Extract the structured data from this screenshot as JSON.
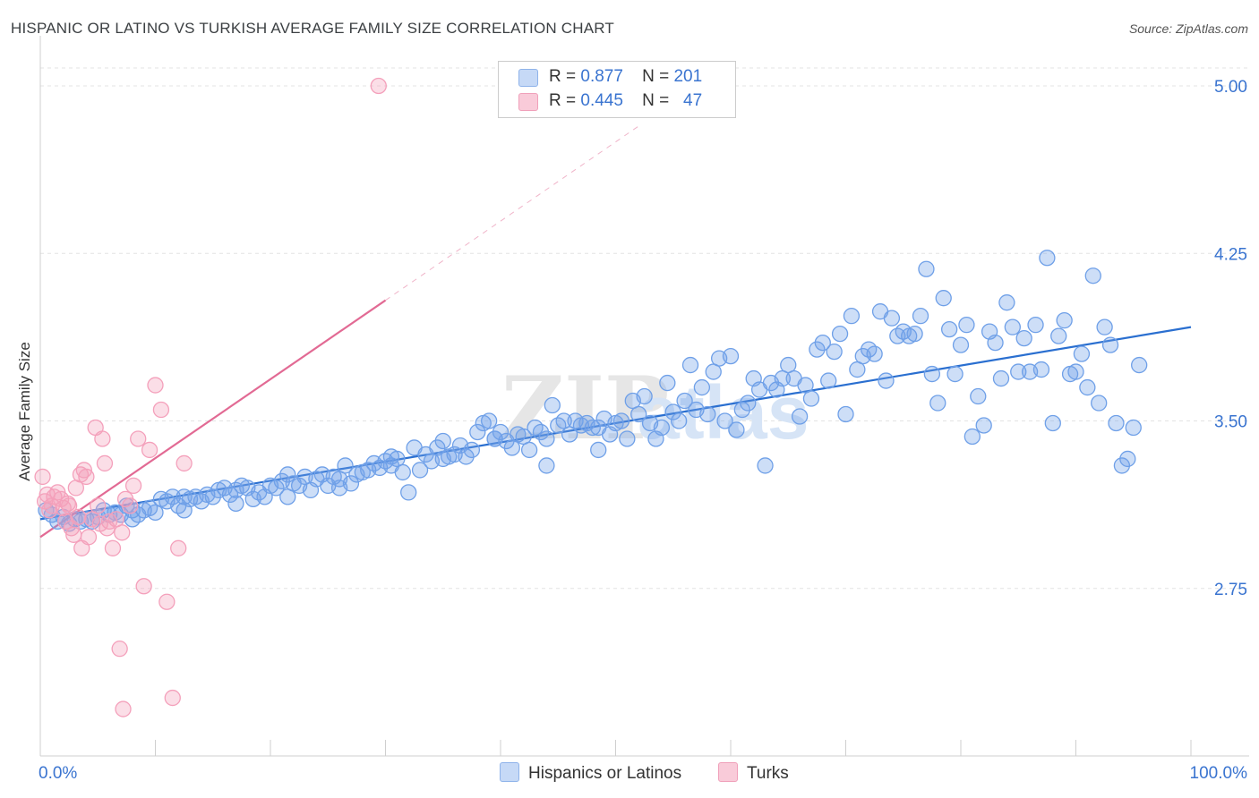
{
  "title": "HISPANIC OR LATINO VS TURKISH AVERAGE FAMILY SIZE CORRELATION CHART",
  "source": "Source: ZipAtlas.com",
  "watermark": "ZIPatlas",
  "legend_top": [
    {
      "r_label": "R =",
      "r_value": "0.877",
      "n_label": "N =",
      "n_value": "201",
      "color": "#a9c7f2"
    },
    {
      "r_label": "R =",
      "r_value": "0.445",
      "n_label": "N =",
      "n_value": "47",
      "color": "#f6b8cb"
    }
  ],
  "chart_data": {
    "type": "scatter",
    "title": "HISPANIC OR LATINO VS TURKISH AVERAGE FAMILY SIZE CORRELATION CHART",
    "xlabel": "",
    "ylabel": "Average Family Size",
    "x_tick_labels": [
      "0.0%",
      "100.0%"
    ],
    "y_ticks": [
      2.75,
      3.5,
      4.25,
      5.0
    ],
    "y_tick_labels": [
      "2.75",
      "3.50",
      "4.25",
      "5.00"
    ],
    "xlim": [
      0,
      100
    ],
    "ylim": [
      2.0,
      5.1
    ],
    "grid": true,
    "legend_position": "bottom",
    "series": [
      {
        "name": "Hispanics or Latinos",
        "color": "#6fa0e8",
        "line_color": "#2a6fd0",
        "trend": {
          "x": [
            0,
            100
          ],
          "y": [
            3.06,
            3.92
          ]
        },
        "points": [
          [
            0.5,
            3.1
          ],
          [
            1,
            3.08
          ],
          [
            1.5,
            3.05
          ],
          [
            2,
            3.07
          ],
          [
            2.5,
            3.04
          ],
          [
            3,
            3.06
          ],
          [
            3.5,
            3.05
          ],
          [
            4,
            3.06
          ],
          [
            4.5,
            3.05
          ],
          [
            5,
            3.07
          ],
          [
            5.5,
            3.1
          ],
          [
            6,
            3.08
          ],
          [
            6.5,
            3.09
          ],
          [
            7,
            3.08
          ],
          [
            7.5,
            3.12
          ],
          [
            8,
            3.1
          ],
          [
            8.5,
            3.08
          ],
          [
            9,
            3.1
          ],
          [
            9.5,
            3.11
          ],
          [
            10,
            3.09
          ],
          [
            10.5,
            3.15
          ],
          [
            11,
            3.14
          ],
          [
            11.5,
            3.16
          ],
          [
            12,
            3.12
          ],
          [
            12.5,
            3.16
          ],
          [
            13,
            3.15
          ],
          [
            13.5,
            3.16
          ],
          [
            14,
            3.14
          ],
          [
            14.5,
            3.17
          ],
          [
            15,
            3.16
          ],
          [
            15.5,
            3.19
          ],
          [
            16,
            3.2
          ],
          [
            16.5,
            3.17
          ],
          [
            17,
            3.19
          ],
          [
            17.5,
            3.21
          ],
          [
            18,
            3.2
          ],
          [
            18.5,
            3.15
          ],
          [
            19,
            3.18
          ],
          [
            19.5,
            3.16
          ],
          [
            20,
            3.21
          ],
          [
            20.5,
            3.2
          ],
          [
            21,
            3.23
          ],
          [
            21.5,
            3.26
          ],
          [
            22,
            3.22
          ],
          [
            22.5,
            3.21
          ],
          [
            23,
            3.25
          ],
          [
            23.5,
            3.19
          ],
          [
            24,
            3.24
          ],
          [
            24.5,
            3.26
          ],
          [
            25,
            3.21
          ],
          [
            25.5,
            3.25
          ],
          [
            26,
            3.24
          ],
          [
            26.5,
            3.3
          ],
          [
            27,
            3.22
          ],
          [
            27.5,
            3.26
          ],
          [
            28,
            3.27
          ],
          [
            28.5,
            3.28
          ],
          [
            29,
            3.31
          ],
          [
            29.5,
            3.29
          ],
          [
            30,
            3.32
          ],
          [
            30.5,
            3.34
          ],
          [
            31,
            3.33
          ],
          [
            31.5,
            3.27
          ],
          [
            32,
            3.18
          ],
          [
            32.5,
            3.38
          ],
          [
            33,
            3.28
          ],
          [
            33.5,
            3.35
          ],
          [
            34,
            3.32
          ],
          [
            34.5,
            3.38
          ],
          [
            35,
            3.41
          ],
          [
            35.5,
            3.34
          ],
          [
            36,
            3.35
          ],
          [
            36.5,
            3.39
          ],
          [
            37,
            3.34
          ],
          [
            37.5,
            3.37
          ],
          [
            38,
            3.45
          ],
          [
            38.5,
            3.49
          ],
          [
            39,
            3.5
          ],
          [
            39.5,
            3.42
          ],
          [
            40,
            3.45
          ],
          [
            40.5,
            3.41
          ],
          [
            41,
            3.38
          ],
          [
            41.5,
            3.44
          ],
          [
            42,
            3.43
          ],
          [
            42.5,
            3.37
          ],
          [
            43,
            3.47
          ],
          [
            43.5,
            3.45
          ],
          [
            44,
            3.3
          ],
          [
            44.5,
            3.57
          ],
          [
            45,
            3.48
          ],
          [
            45.5,
            3.5
          ],
          [
            46,
            3.44
          ],
          [
            46.5,
            3.5
          ],
          [
            47,
            3.48
          ],
          [
            47.5,
            3.49
          ],
          [
            48,
            3.47
          ],
          [
            48.5,
            3.37
          ],
          [
            49,
            3.51
          ],
          [
            49.5,
            3.44
          ],
          [
            50,
            3.49
          ],
          [
            50.5,
            3.5
          ],
          [
            51,
            3.42
          ],
          [
            51.5,
            3.59
          ],
          [
            52,
            3.53
          ],
          [
            52.5,
            3.61
          ],
          [
            53,
            3.49
          ],
          [
            53.5,
            3.42
          ],
          [
            54,
            3.47
          ],
          [
            54.5,
            3.67
          ],
          [
            55,
            3.54
          ],
          [
            55.5,
            3.5
          ],
          [
            56,
            3.59
          ],
          [
            56.5,
            3.75
          ],
          [
            57,
            3.55
          ],
          [
            57.5,
            3.65
          ],
          [
            58,
            3.53
          ],
          [
            58.5,
            3.72
          ],
          [
            59,
            3.78
          ],
          [
            59.5,
            3.5
          ],
          [
            60,
            3.79
          ],
          [
            60.5,
            3.46
          ],
          [
            61,
            3.55
          ],
          [
            61.5,
            3.58
          ],
          [
            62,
            3.69
          ],
          [
            62.5,
            3.64
          ],
          [
            63,
            3.3
          ],
          [
            63.5,
            3.67
          ],
          [
            64,
            3.64
          ],
          [
            64.5,
            3.69
          ],
          [
            65,
            3.75
          ],
          [
            65.5,
            3.69
          ],
          [
            66,
            3.52
          ],
          [
            66.5,
            3.66
          ],
          [
            67,
            3.6
          ],
          [
            67.5,
            3.82
          ],
          [
            68,
            3.85
          ],
          [
            68.5,
            3.68
          ],
          [
            69,
            3.81
          ],
          [
            69.5,
            3.89
          ],
          [
            70,
            3.53
          ],
          [
            70.5,
            3.97
          ],
          [
            71,
            3.73
          ],
          [
            71.5,
            3.79
          ],
          [
            72,
            3.82
          ],
          [
            72.5,
            3.8
          ],
          [
            73,
            3.99
          ],
          [
            73.5,
            3.68
          ],
          [
            74,
            3.96
          ],
          [
            74.5,
            3.88
          ],
          [
            75,
            3.9
          ],
          [
            75.5,
            3.88
          ],
          [
            76,
            3.89
          ],
          [
            76.5,
            3.97
          ],
          [
            77,
            4.18
          ],
          [
            77.5,
            3.71
          ],
          [
            78,
            3.58
          ],
          [
            78.5,
            4.05
          ],
          [
            79,
            3.91
          ],
          [
            79.5,
            3.71
          ],
          [
            80,
            3.84
          ],
          [
            80.5,
            3.93
          ],
          [
            81,
            3.43
          ],
          [
            81.5,
            3.61
          ],
          [
            82,
            3.48
          ],
          [
            82.5,
            3.9
          ],
          [
            83,
            3.85
          ],
          [
            83.5,
            3.69
          ],
          [
            84,
            4.03
          ],
          [
            84.5,
            3.92
          ],
          [
            85,
            3.72
          ],
          [
            85.5,
            3.87
          ],
          [
            86,
            3.72
          ],
          [
            86.5,
            3.93
          ],
          [
            87,
            3.73
          ],
          [
            87.5,
            4.23
          ],
          [
            88,
            3.49
          ],
          [
            88.5,
            3.88
          ],
          [
            89,
            3.95
          ],
          [
            89.5,
            3.71
          ],
          [
            90,
            3.72
          ],
          [
            90.5,
            3.8
          ],
          [
            91,
            3.65
          ],
          [
            91.5,
            4.15
          ],
          [
            92,
            3.58
          ],
          [
            92.5,
            3.92
          ],
          [
            93,
            3.84
          ],
          [
            93.5,
            3.49
          ],
          [
            94,
            3.3
          ],
          [
            94.5,
            3.33
          ],
          [
            95,
            3.47
          ],
          [
            95.5,
            3.75
          ],
          [
            8,
            3.06
          ],
          [
            12.5,
            3.1
          ],
          [
            17,
            3.13
          ],
          [
            21.5,
            3.16
          ],
          [
            26,
            3.2
          ],
          [
            30.5,
            3.3
          ],
          [
            35,
            3.33
          ],
          [
            39.5,
            3.42
          ],
          [
            44,
            3.42
          ],
          [
            48.5,
            3.47
          ]
        ]
      },
      {
        "name": "Turks",
        "color": "#f4a0bb",
        "line_color": "#e26a94",
        "trend": {
          "x": [
            0,
            30
          ],
          "y": [
            2.98,
            4.04
          ]
        },
        "trend_extended": {
          "x": [
            30,
            52
          ],
          "y": [
            4.04,
            4.82
          ]
        },
        "points": [
          [
            0.2,
            3.25
          ],
          [
            0.4,
            3.14
          ],
          [
            0.6,
            3.17
          ],
          [
            0.8,
            3.1
          ],
          [
            1,
            3.12
          ],
          [
            1.2,
            3.16
          ],
          [
            1.5,
            3.18
          ],
          [
            1.8,
            3.15
          ],
          [
            2,
            3.11
          ],
          [
            2.2,
            3.05
          ],
          [
            2.4,
            3.13
          ],
          [
            2.5,
            3.12
          ],
          [
            2.7,
            3.02
          ],
          [
            2.9,
            2.99
          ],
          [
            3.1,
            3.2
          ],
          [
            3.3,
            3.07
          ],
          [
            3.5,
            3.26
          ],
          [
            3.6,
            2.93
          ],
          [
            3.8,
            3.28
          ],
          [
            4,
            3.25
          ],
          [
            4.2,
            2.98
          ],
          [
            4.5,
            3.06
          ],
          [
            4.8,
            3.47
          ],
          [
            5,
            3.12
          ],
          [
            5.2,
            3.04
          ],
          [
            5.4,
            3.42
          ],
          [
            5.6,
            3.31
          ],
          [
            5.8,
            3.02
          ],
          [
            6,
            3.05
          ],
          [
            6.3,
            2.93
          ],
          [
            6.6,
            3.06
          ],
          [
            6.9,
            2.48
          ],
          [
            7.1,
            3.0
          ],
          [
            7.4,
            3.15
          ],
          [
            7.8,
            3.12
          ],
          [
            8.1,
            3.21
          ],
          [
            8.5,
            3.42
          ],
          [
            9,
            2.76
          ],
          [
            9.5,
            3.37
          ],
          [
            10,
            3.66
          ],
          [
            10.5,
            3.55
          ],
          [
            11,
            2.69
          ],
          [
            11.5,
            2.26
          ],
          [
            12,
            2.93
          ],
          [
            12.5,
            3.31
          ],
          [
            7.2,
            2.21
          ],
          [
            29.4,
            5.0
          ]
        ]
      }
    ]
  }
}
